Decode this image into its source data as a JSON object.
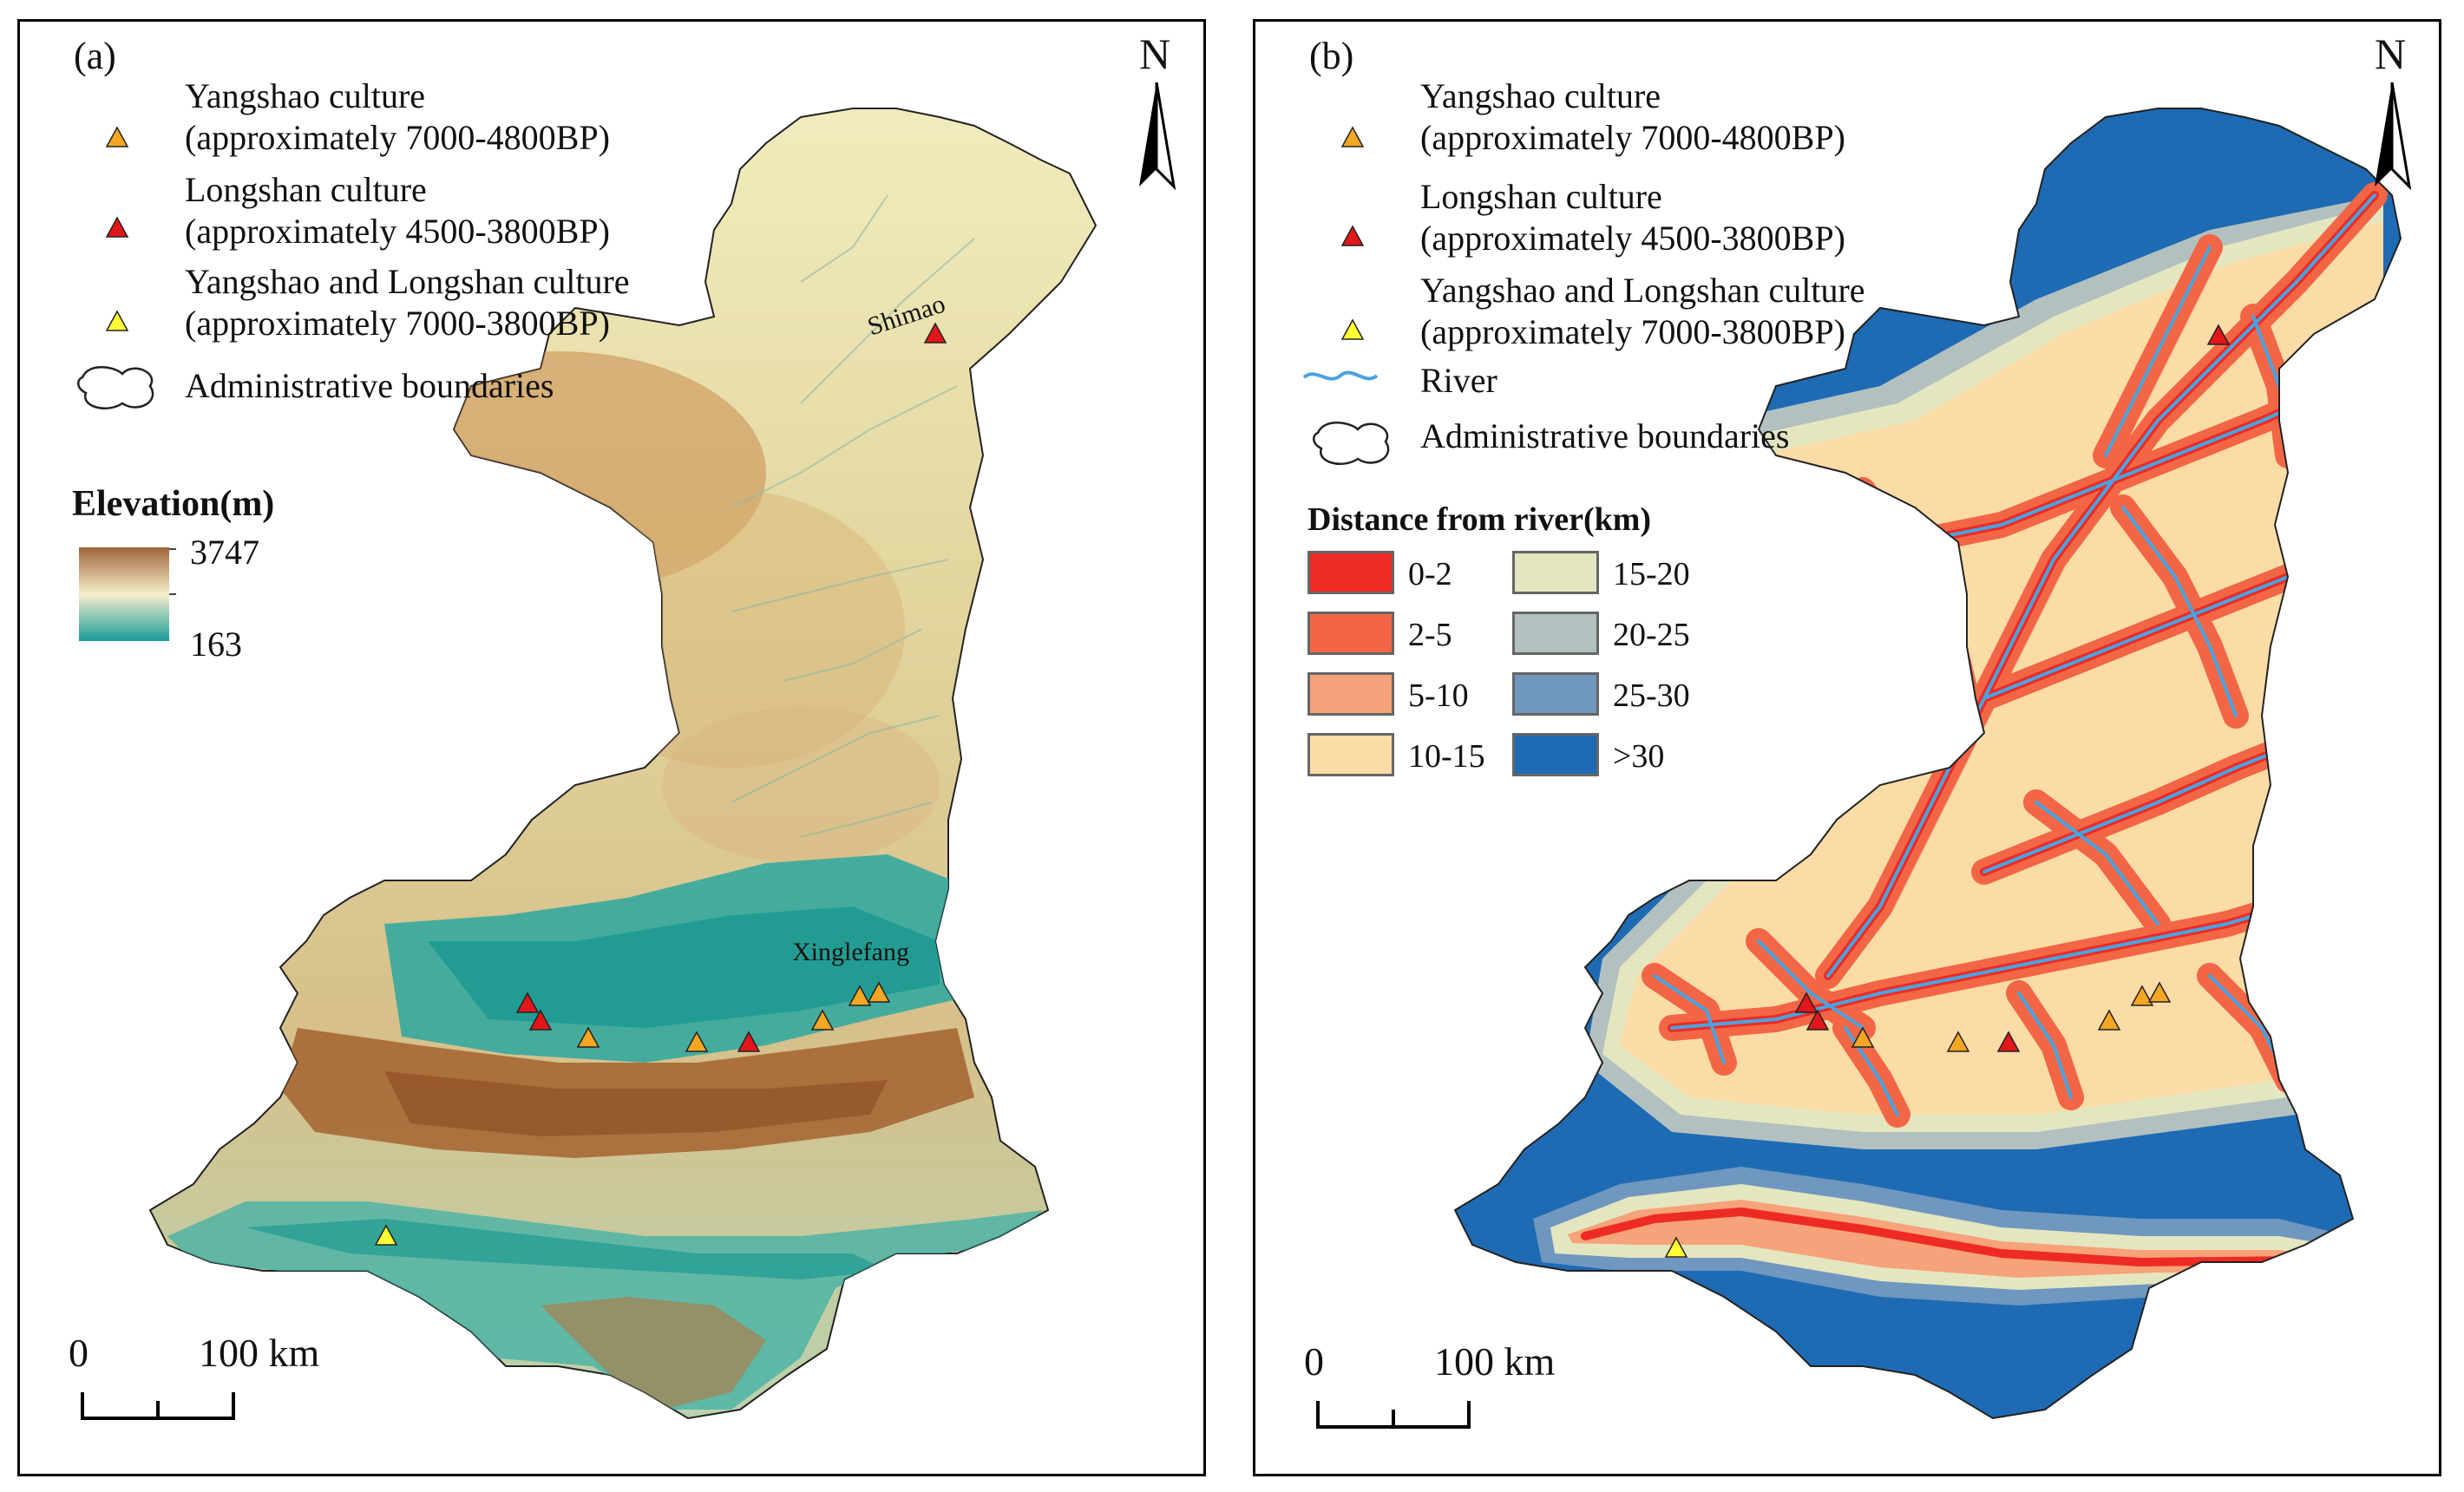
{
  "panel_a": {
    "tag": "(a)",
    "north": "N",
    "legend": {
      "yangshao_name": "Yangshao culture",
      "yangshao_period": "(approximately 7000-4800BP)",
      "longshan_name": "Longshan culture",
      "longshan_period": "(approximately 4500-3800BP)",
      "both_name": "Yangshao and Longshan culture",
      "both_period": "(approximately 7000-3800BP)",
      "boundary": "Administrative boundaries"
    },
    "elevation": {
      "title": "Elevation(m)",
      "max": "3747",
      "min": "163"
    },
    "places": {
      "shimao": "Shimao",
      "xinglefang": "Xinglefang"
    },
    "scale": {
      "zero": "0",
      "dist": "100 km"
    }
  },
  "panel_b": {
    "tag": "(b)",
    "north": "N",
    "legend": {
      "yangshao_name": "Yangshao culture",
      "yangshao_period": "(approximately 7000-4800BP)",
      "longshan_name": "Longshan culture",
      "longshan_period": "(approximately 4500-3800BP)",
      "both_name": "Yangshao and Longshan culture",
      "both_period": "(approximately 7000-3800BP)",
      "river": "River",
      "boundary": "Administrative boundaries"
    },
    "distance": {
      "title": "Distance from river(km)",
      "classes": [
        {
          "label": "0-2",
          "color": "#ee2a24"
        },
        {
          "label": "2-5",
          "color": "#f26645"
        },
        {
          "label": "5-10",
          "color": "#f6a27a"
        },
        {
          "label": "10-15",
          "color": "#fbdca6"
        },
        {
          "label": "15-20",
          "color": "#e4e6c0"
        },
        {
          "label": "20-25",
          "color": "#b3c0c0"
        },
        {
          "label": "25-30",
          "color": "#6f97bf"
        },
        {
          "label": ">30",
          "color": "#1e6bb4"
        }
      ]
    },
    "scale": {
      "zero": "0",
      "dist": "100 km"
    }
  },
  "colors": {
    "yangshao": "#f5a623",
    "longshan": "#e3161b",
    "both": "#ffff33",
    "river": "#4aa3e0",
    "elev_high": "#a0643a",
    "elev_mid": "#f6efcc",
    "elev_low": "#1a9a9a"
  }
}
